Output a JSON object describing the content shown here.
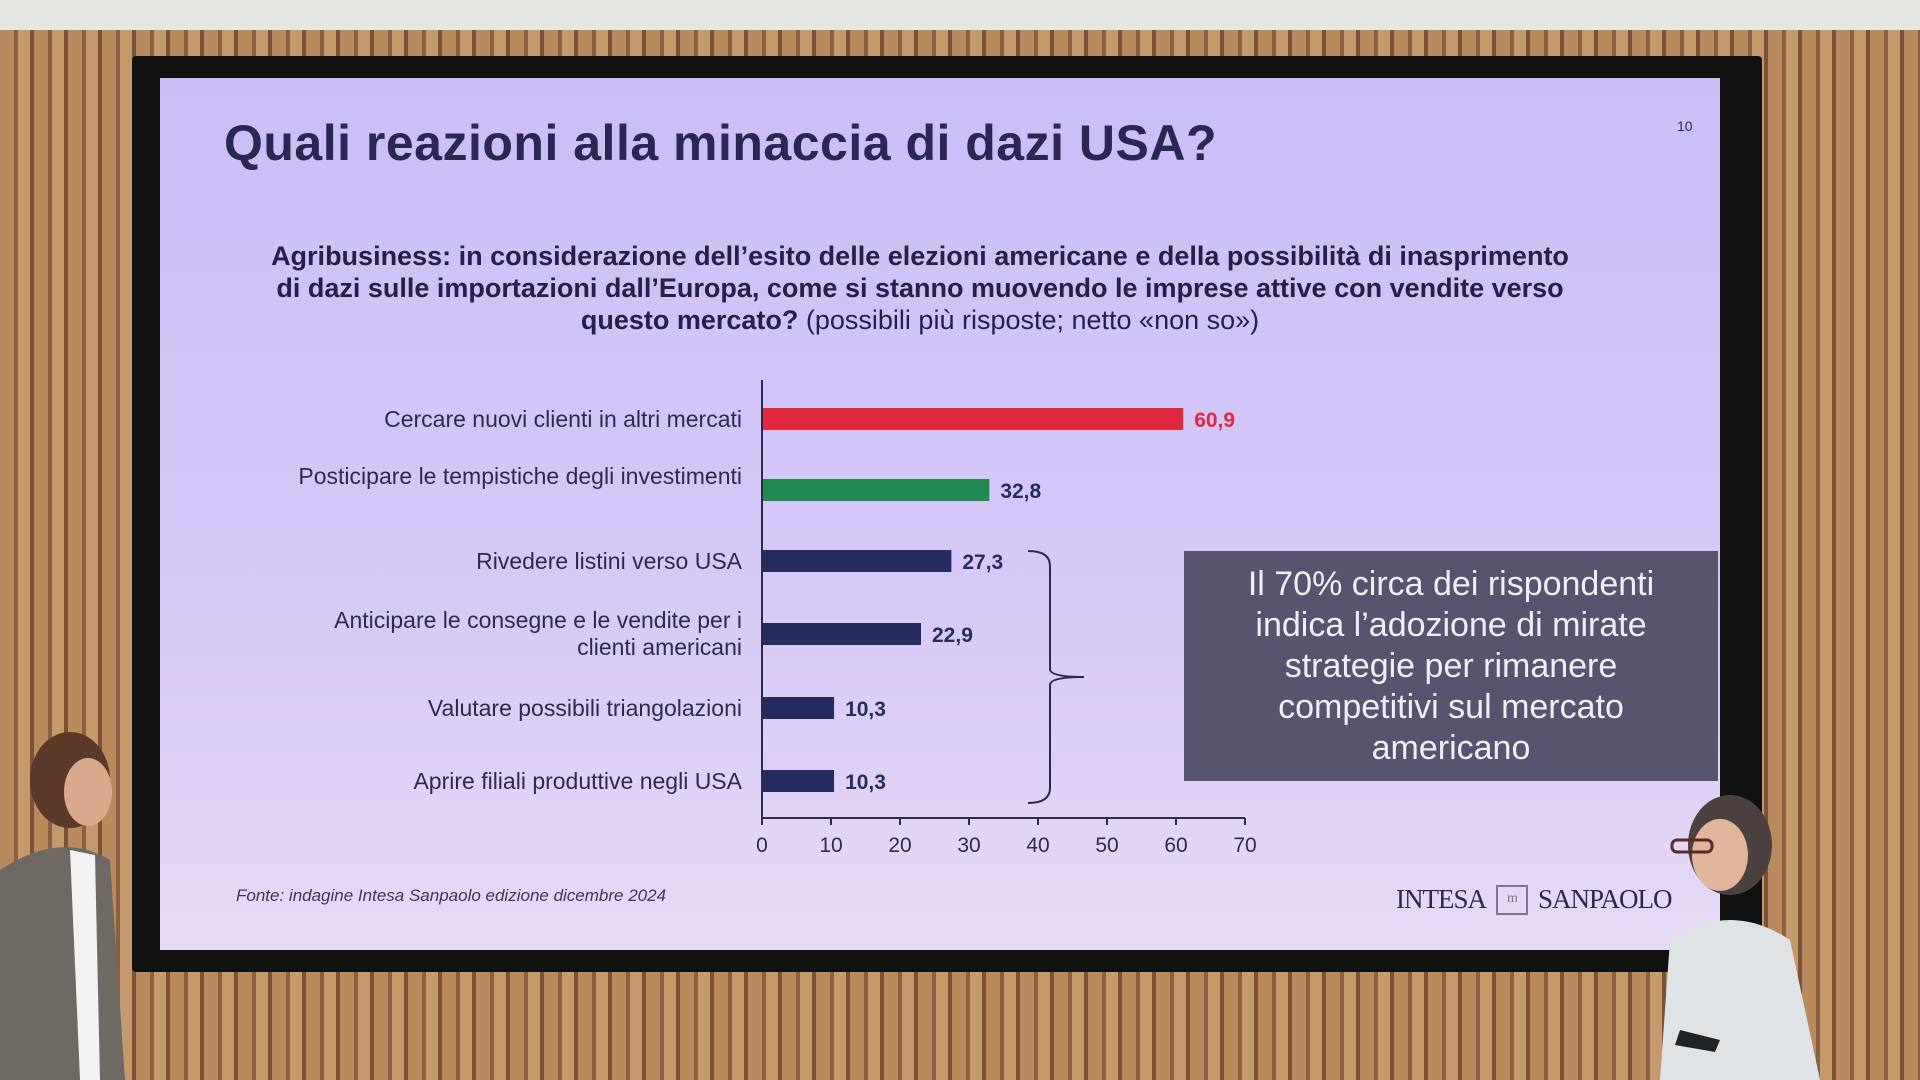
{
  "slide": {
    "title": "Quali reazioni alla minaccia di dazi USA?",
    "page_number": "10",
    "subtitle_bold": "Agribusiness: in considerazione dell’esito delle elezioni americane e della possibilità di inasprimento di dazi sulle importazioni dall’Europa, come si stanno muovendo le imprese attive con vendite verso questo mercato?",
    "subtitle_note": "(possibili più risposte; netto «non so»)",
    "callout": "Il 70% circa dei rispondenti indica l’adozione di mirate strategie per rimanere competitivi sul mercato americano",
    "source": "Fonte: indagine Intesa Sanpaolo edizione dicembre 2024",
    "logo_text_left": "INTESA",
    "logo_text_right": "SANPAOLO"
  },
  "chart_data": {
    "type": "bar",
    "orientation": "horizontal",
    "categories": [
      "Cercare nuovi clienti in altri mercati",
      "Posticipare le tempistiche degli investimenti",
      "Rivedere listini verso USA",
      "Anticipare le consegne e le vendite per i clienti americani",
      "Valutare possibili triangolazioni",
      "Aprire filiali produttive negli USA"
    ],
    "values": [
      60.9,
      32.8,
      27.3,
      22.9,
      10.3,
      10.3
    ],
    "value_labels": [
      "60,9",
      "32,8",
      "27,3",
      "22,9",
      "10,3",
      "10,3"
    ],
    "colors": [
      "#e0283e",
      "#1f8a52",
      "#262d5e",
      "#262d5e",
      "#262d5e",
      "#262d5e"
    ],
    "label_colors": [
      "#e0283e",
      "#262d5e",
      "#262d5e",
      "#262d5e",
      "#262d5e",
      "#262d5e"
    ],
    "xlim": [
      0,
      70
    ],
    "xticks": [
      "0",
      "10",
      "20",
      "30",
      "40",
      "50",
      "60",
      "70"
    ],
    "grid": false,
    "bracket_groups": [
      [
        2,
        5
      ]
    ]
  }
}
